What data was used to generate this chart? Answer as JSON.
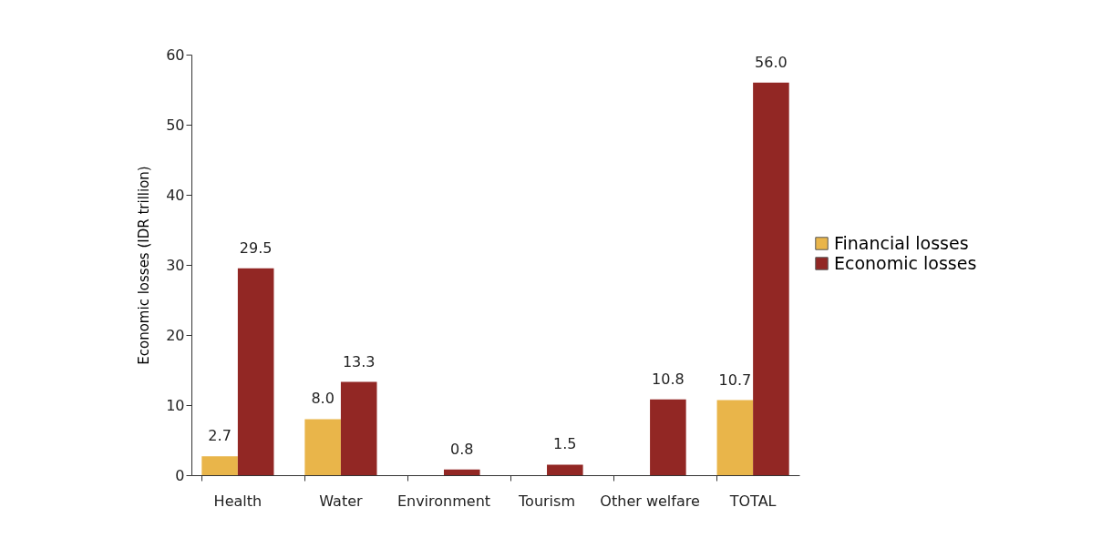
{
  "chart_data": {
    "type": "bar",
    "ylabel": "Economic losses (IDR trillion)",
    "categories": [
      "Health",
      "Water",
      "Environment",
      "Tourism",
      "Other welfare",
      "TOTAL"
    ],
    "series": [
      {
        "name": "Financial losses",
        "color": "#e9b54a",
        "values": [
          2.7,
          8,
          null,
          null,
          null,
          10.7
        ],
        "value_labels": [
          "2.7",
          "8.0",
          null,
          null,
          null,
          "10.7"
        ]
      },
      {
        "name": "Economic losses",
        "color": "#922724",
        "values": [
          29.5,
          13.3,
          0.8,
          1.5,
          10.8,
          56
        ],
        "value_labels": [
          "29.5",
          "13.3",
          "0.8",
          "1.5",
          "10.8",
          "56.0"
        ]
      }
    ],
    "ylim": [
      0,
      60
    ],
    "yticks": [
      0,
      10,
      20,
      30,
      40,
      50,
      60
    ],
    "grid": false,
    "legend": "right"
  }
}
